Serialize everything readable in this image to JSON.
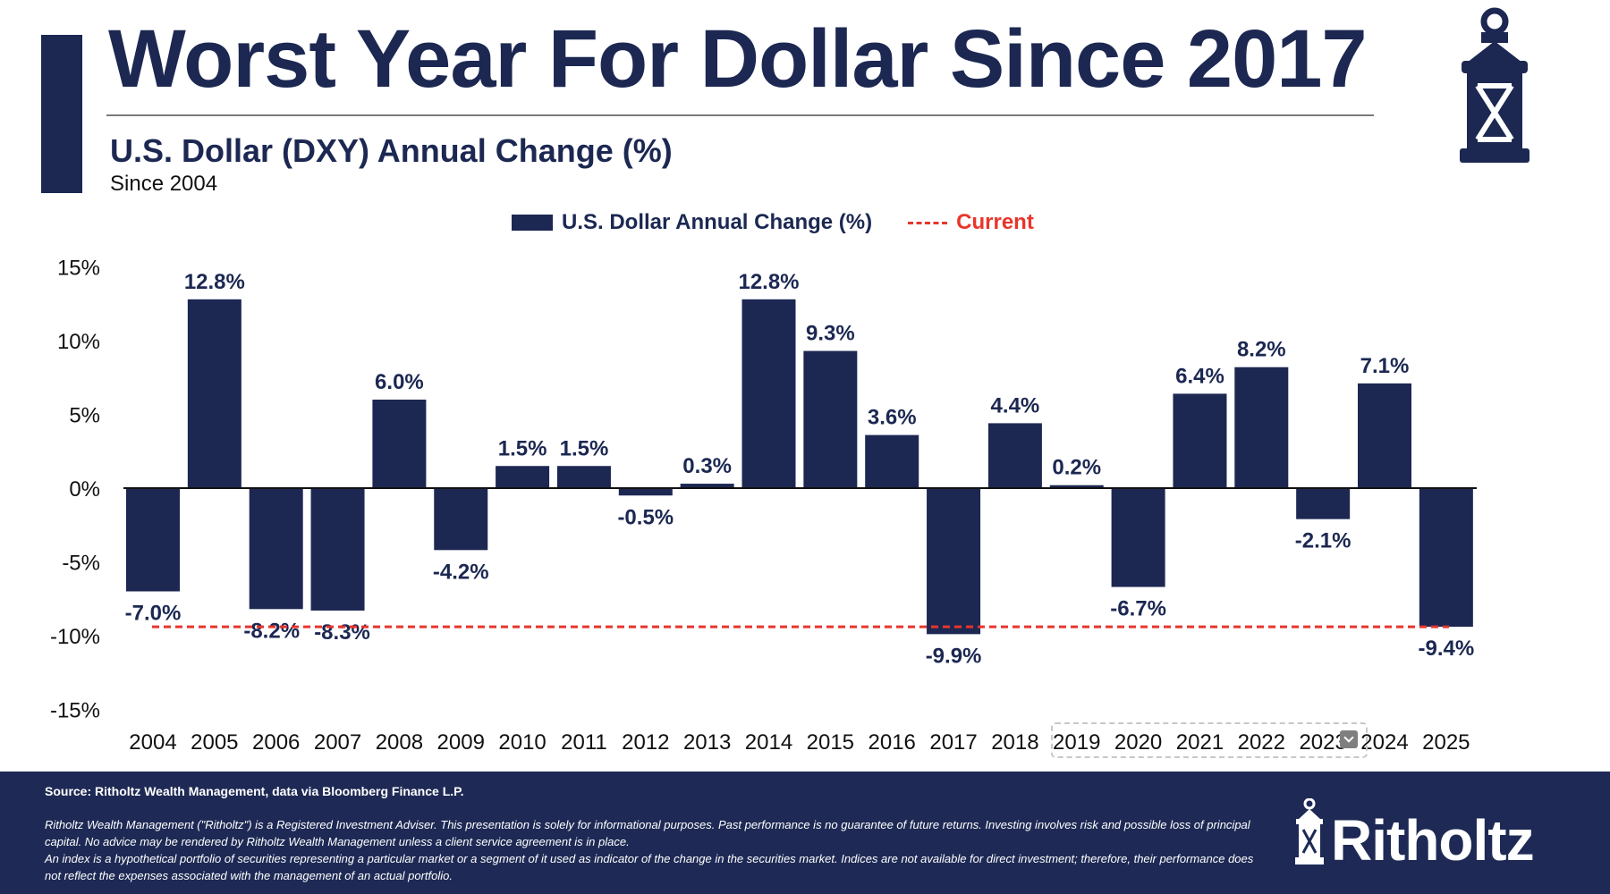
{
  "header": {
    "title": "Worst Year For Dollar Since 2017",
    "subtitle": "U.S. Dollar (DXY) Annual Change (%)",
    "since": "Since 2004"
  },
  "chart_data": {
    "type": "bar",
    "title": "U.S. Dollar (DXY) Annual Change (%)",
    "categories": [
      "2004",
      "2005",
      "2006",
      "2007",
      "2008",
      "2009",
      "2010",
      "2011",
      "2012",
      "2013",
      "2014",
      "2015",
      "2016",
      "2017",
      "2018",
      "2019",
      "2020",
      "2021",
      "2022",
      "2023",
      "2024",
      "2025"
    ],
    "series": [
      {
        "name": "U.S. Dollar Annual Change (%)",
        "values": [
          -7.0,
          12.8,
          -8.2,
          -8.3,
          6.0,
          -4.2,
          1.5,
          1.5,
          -0.5,
          0.3,
          12.8,
          9.3,
          3.6,
          -9.9,
          4.4,
          0.2,
          -6.7,
          6.4,
          8.2,
          -2.1,
          7.1,
          -9.4
        ],
        "color": "#1c2852"
      }
    ],
    "reference_line": {
      "name": "Current",
      "value": -9.4,
      "color": "#e8352b",
      "style": "dashed"
    },
    "yticks": [
      "15%",
      "10%",
      "5%",
      "0%",
      "-5%",
      "-10%",
      "-15%"
    ],
    "ylim": [
      -15,
      15
    ],
    "legend_position": "top-center",
    "grid": false
  },
  "legend": {
    "bar": "U.S. Dollar Annual Change (%)",
    "line": "Current"
  },
  "footer": {
    "source": "Source: Ritholtz Wealth Management, data via Bloomberg Finance L.P.",
    "disclaimer1": "Ritholtz Wealth Management (\"Ritholtz\") is a Registered Investment Adviser. This presentation is solely for informational purposes. Past performance is no guarantee of future returns. Investing involves risk and possible loss of principal capital. No advice may be rendered by Ritholtz Wealth Management unless a client service agreement is in place.",
    "disclaimer2": "An index is a hypothetical portfolio of securities representing a particular market or a segment of it used as indicator of the change in the securities market. Indices are not available for direct investment; therefore, their performance does not reflect the expenses associated with the management of an actual portfolio.",
    "brand": "Ritholtz"
  }
}
